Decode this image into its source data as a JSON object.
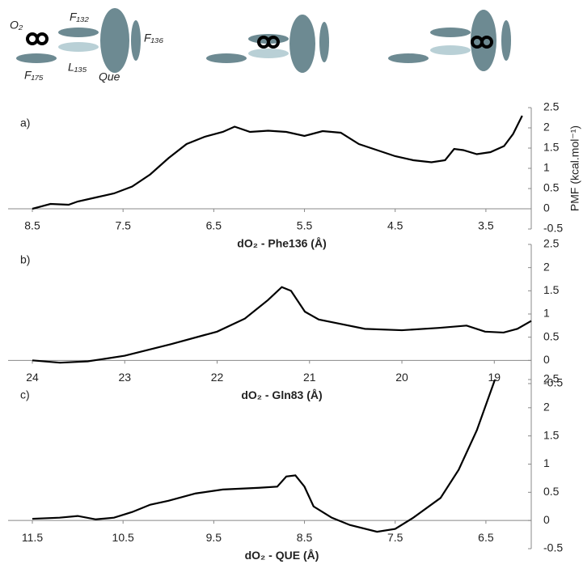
{
  "schematic": {
    "labels": [
      "O₂",
      "F₁₃₂",
      "F₁₃₆",
      "L₁₃₅",
      "Que",
      "F₁₇₅"
    ]
  },
  "chart_data": [
    {
      "type": "line",
      "label": "a)",
      "xlabel": "dO₂ - Phe136 (Å)",
      "ylabel": "PMF (kcal.mol⁻¹)",
      "color": "#000000",
      "x": [
        8.5,
        8.3,
        8.1,
        8.0,
        7.8,
        7.6,
        7.4,
        7.2,
        7.0,
        6.8,
        6.6,
        6.4,
        6.27,
        6.1,
        5.9,
        5.7,
        5.5,
        5.3,
        5.1,
        4.9,
        4.7,
        4.5,
        4.3,
        4.1,
        3.95,
        3.85,
        3.75,
        3.6,
        3.45,
        3.3,
        3.2,
        3.1
      ],
      "values": [
        0,
        0.12,
        0.1,
        0.18,
        0.28,
        0.38,
        0.55,
        0.85,
        1.25,
        1.6,
        1.78,
        1.9,
        2.03,
        1.9,
        1.93,
        1.9,
        1.8,
        1.92,
        1.88,
        1.6,
        1.45,
        1.3,
        1.2,
        1.15,
        1.2,
        1.48,
        1.45,
        1.35,
        1.4,
        1.55,
        1.85,
        2.3
      ],
      "xlim": [
        8.5,
        3
      ],
      "xticks": [
        8.5,
        7.5,
        6.5,
        5.5,
        4.5,
        3.5
      ],
      "ylim": [
        -0.5,
        2.5
      ],
      "yticks": [
        2.5,
        2,
        1.5,
        1,
        0.5,
        0,
        -0.5
      ]
    },
    {
      "type": "line",
      "label": "b)",
      "xlabel": "dO₂ - Gln83 (Å)",
      "color": "#000000",
      "x": [
        24,
        23.7,
        23.4,
        23,
        22.5,
        22,
        21.7,
        21.45,
        21.3,
        21.2,
        21.05,
        20.9,
        20.7,
        20.4,
        20,
        19.6,
        19.3,
        19.1,
        18.9,
        18.75,
        18.6
      ],
      "values": [
        0,
        -0.05,
        -0.02,
        0.1,
        0.35,
        0.62,
        0.9,
        1.3,
        1.58,
        1.5,
        1.05,
        0.88,
        0.8,
        0.68,
        0.65,
        0.7,
        0.75,
        0.62,
        0.6,
        0.68,
        0.85
      ],
      "xlim": [
        24,
        18.6
      ],
      "xticks": [
        24,
        23,
        22,
        21,
        20,
        19
      ],
      "ylim": [
        -0.5,
        2.5
      ],
      "yticks": [
        2.5,
        2,
        1.5,
        1,
        0.5,
        0,
        -0.5
      ]
    },
    {
      "type": "line",
      "label": "c)",
      "xlabel": "dO₂ - QUE (Å)",
      "color": "#000000",
      "x": [
        11.5,
        11.2,
        11.0,
        10.8,
        10.6,
        10.4,
        10.2,
        10.0,
        9.7,
        9.4,
        9.0,
        8.8,
        8.7,
        8.6,
        8.5,
        8.4,
        8.2,
        8.0,
        7.7,
        7.5,
        7.3,
        7.0,
        6.8,
        6.6,
        6.4
      ],
      "values": [
        0.03,
        0.05,
        0.08,
        0.02,
        0.05,
        0.15,
        0.28,
        0.35,
        0.48,
        0.55,
        0.58,
        0.6,
        0.78,
        0.8,
        0.6,
        0.25,
        0.05,
        -0.08,
        -0.2,
        -0.15,
        0.05,
        0.4,
        0.9,
        1.6,
        2.5
      ],
      "xlim": [
        11.5,
        6
      ],
      "xticks": [
        11.5,
        10.5,
        9.5,
        8.5,
        7.5,
        6.5
      ],
      "ylim": [
        -0.5,
        2.5
      ],
      "yticks": [
        2.5,
        2,
        1.5,
        1,
        0.5,
        0,
        -0.5
      ]
    }
  ]
}
